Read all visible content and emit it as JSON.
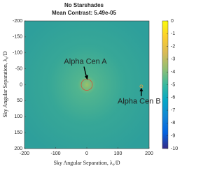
{
  "chart_data": {
    "type": "heatmap",
    "title": "No Starshades",
    "subtitle": "Mean Contrast: 5.49e-05",
    "xlabel": "Sky Angular Separation, λ₀/D",
    "ylabel": "Sky Angular Separation, λ₀/D",
    "xlim": [
      -200,
      200
    ],
    "xticks": [
      -200,
      -100,
      0,
      100,
      200
    ],
    "ylim": [
      -200,
      200
    ],
    "yticks": [
      -200,
      -150,
      -100,
      -50,
      0,
      50,
      100,
      150,
      200
    ],
    "y_inverted": true,
    "clim": [
      -10,
      0
    ],
    "cticks": [
      0,
      -1,
      -2,
      -3,
      -4,
      -5,
      -6,
      -7,
      -8,
      -9,
      -10
    ],
    "colormap": [
      "#352a87",
      "#0363e1",
      "#1485d4",
      "#06a7c6",
      "#38b99e",
      "#92bf73",
      "#d9ba56",
      "#fcce2e",
      "#f9fb0e"
    ],
    "annotations": [
      {
        "text": "Alpha Cen A",
        "x": 0,
        "y": 0
      },
      {
        "text": "Alpha Cen B",
        "x": 175,
        "y": 5
      }
    ]
  }
}
